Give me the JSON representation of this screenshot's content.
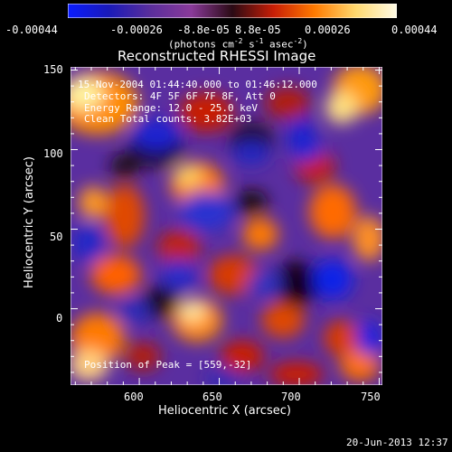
{
  "colorbar": {
    "ticks": [
      "-0.00044",
      "-0.00026",
      "-8.8e-05",
      "8.8e-05",
      "0.00026",
      "0.00044"
    ],
    "units_parts": [
      "(photons cm",
      "-2",
      " s",
      "-1",
      " asec",
      "-2",
      ")"
    ],
    "colors": [
      "#0a1cff",
      "#1a1ab8",
      "#5a2e9c",
      "#8a3a9a",
      "#2a0a14",
      "#c81e06",
      "#ff7a00",
      "#ffd86e",
      "#fffce6"
    ]
  },
  "plot": {
    "title": "Reconstructed RHESSI Image",
    "xlabel": "Heliocentric X (arcsec)",
    "ylabel": "Heliocentric Y (arcsec)",
    "xticks": [
      "600",
      "650",
      "700",
      "750"
    ],
    "yticks": [
      "150",
      "100",
      "50",
      "0"
    ],
    "xlim": [
      557,
      752
    ],
    "ylim": [
      -48,
      152
    ],
    "annotations": [
      "15-Nov-2004 01:44:40.000 to 01:46:12.000",
      "Detectors: 4F 5F 6F 7F 8F, Att 0",
      "Energy Range: 12.0 - 25.0 keV",
      "Clean    Total counts: 3.82E+03"
    ],
    "peak_text": "Position of Peak = [559,-32]"
  },
  "footer": {
    "timestamp": "20-Jun-2013 12:37"
  }
}
